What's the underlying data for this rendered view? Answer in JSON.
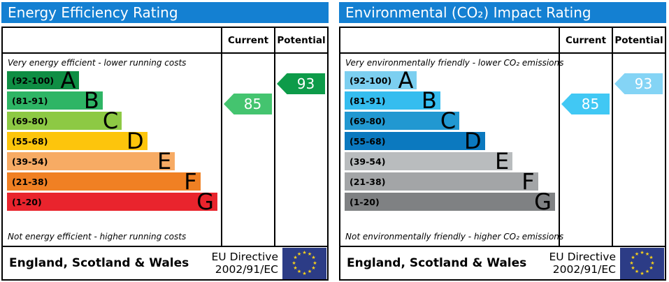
{
  "colors": {
    "header_bg": "#1480d2",
    "border": "#000000",
    "eu_flag_bg": "#2c3c86",
    "eu_star": "#f8d11a"
  },
  "chart_data": [
    {
      "type": "bar",
      "title": "Energy Efficiency Rating",
      "columns": {
        "current": "Current",
        "potential": "Potential"
      },
      "top_note": "Very energy efficient - lower running costs",
      "bottom_note": "Not energy efficient - higher running costs",
      "ylim": [
        1,
        100
      ],
      "bands": [
        {
          "letter": "A",
          "label": "(92-100)",
          "range": [
            92,
            100
          ],
          "color": "#0f8e44",
          "width_pct": 34
        },
        {
          "letter": "B",
          "label": "(81-91)",
          "range": [
            81,
            91
          ],
          "color": "#2eb565",
          "width_pct": 45
        },
        {
          "letter": "C",
          "label": "(69-80)",
          "range": [
            69,
            80
          ],
          "color": "#8dc944",
          "width_pct": 54
        },
        {
          "letter": "D",
          "label": "(55-68)",
          "range": [
            55,
            68
          ],
          "color": "#fdc50c",
          "width_pct": 66
        },
        {
          "letter": "E",
          "label": "(39-54)",
          "range": [
            39,
            54
          ],
          "color": "#f7ab64",
          "width_pct": 79
        },
        {
          "letter": "F",
          "label": "(21-38)",
          "range": [
            21,
            38
          ],
          "color": "#f08023",
          "width_pct": 91
        },
        {
          "letter": "G",
          "label": "(1-20)",
          "range": [
            1,
            20
          ],
          "color": "#e9242d",
          "width_pct": 99
        }
      ],
      "current": {
        "value": "85",
        "band": "B",
        "color": "#44c46f"
      },
      "potential": {
        "value": "93",
        "band": "A",
        "color": "#0d9b49"
      },
      "footer": {
        "region": "England, Scotland & Wales",
        "directive": [
          "EU Directive",
          "2002/91/EC"
        ]
      }
    },
    {
      "type": "bar",
      "title": "Environmental (CO₂) Impact Rating",
      "columns": {
        "current": "Current",
        "potential": "Potential"
      },
      "top_note": "Very environmentally friendly - lower CO₂ emissions",
      "bottom_note": "Not environmentally friendly - higher CO₂ emissions",
      "ylim": [
        1,
        100
      ],
      "bands": [
        {
          "letter": "A",
          "label": "(92-100)",
          "range": [
            92,
            100
          ],
          "color": "#7ccff0",
          "width_pct": 34
        },
        {
          "letter": "B",
          "label": "(81-91)",
          "range": [
            81,
            91
          ],
          "color": "#35bdef",
          "width_pct": 45
        },
        {
          "letter": "C",
          "label": "(69-80)",
          "range": [
            69,
            80
          ],
          "color": "#2198d1",
          "width_pct": 54
        },
        {
          "letter": "D",
          "label": "(55-68)",
          "range": [
            55,
            68
          ],
          "color": "#0b79bf",
          "width_pct": 66
        },
        {
          "letter": "E",
          "label": "(39-54)",
          "range": [
            39,
            54
          ],
          "color": "#b9bcbe",
          "width_pct": 79
        },
        {
          "letter": "F",
          "label": "(21-38)",
          "range": [
            21,
            38
          ],
          "color": "#a3a5a7",
          "width_pct": 91
        },
        {
          "letter": "G",
          "label": "(1-20)",
          "range": [
            1,
            20
          ],
          "color": "#7f8183",
          "width_pct": 99
        }
      ],
      "current": {
        "value": "85",
        "band": "B",
        "color": "#41c8f4"
      },
      "potential": {
        "value": "93",
        "band": "A",
        "color": "#84d4f5"
      },
      "footer": {
        "region": "England, Scotland & Wales",
        "directive": [
          "EU Directive",
          "2002/91/EC"
        ]
      }
    }
  ]
}
